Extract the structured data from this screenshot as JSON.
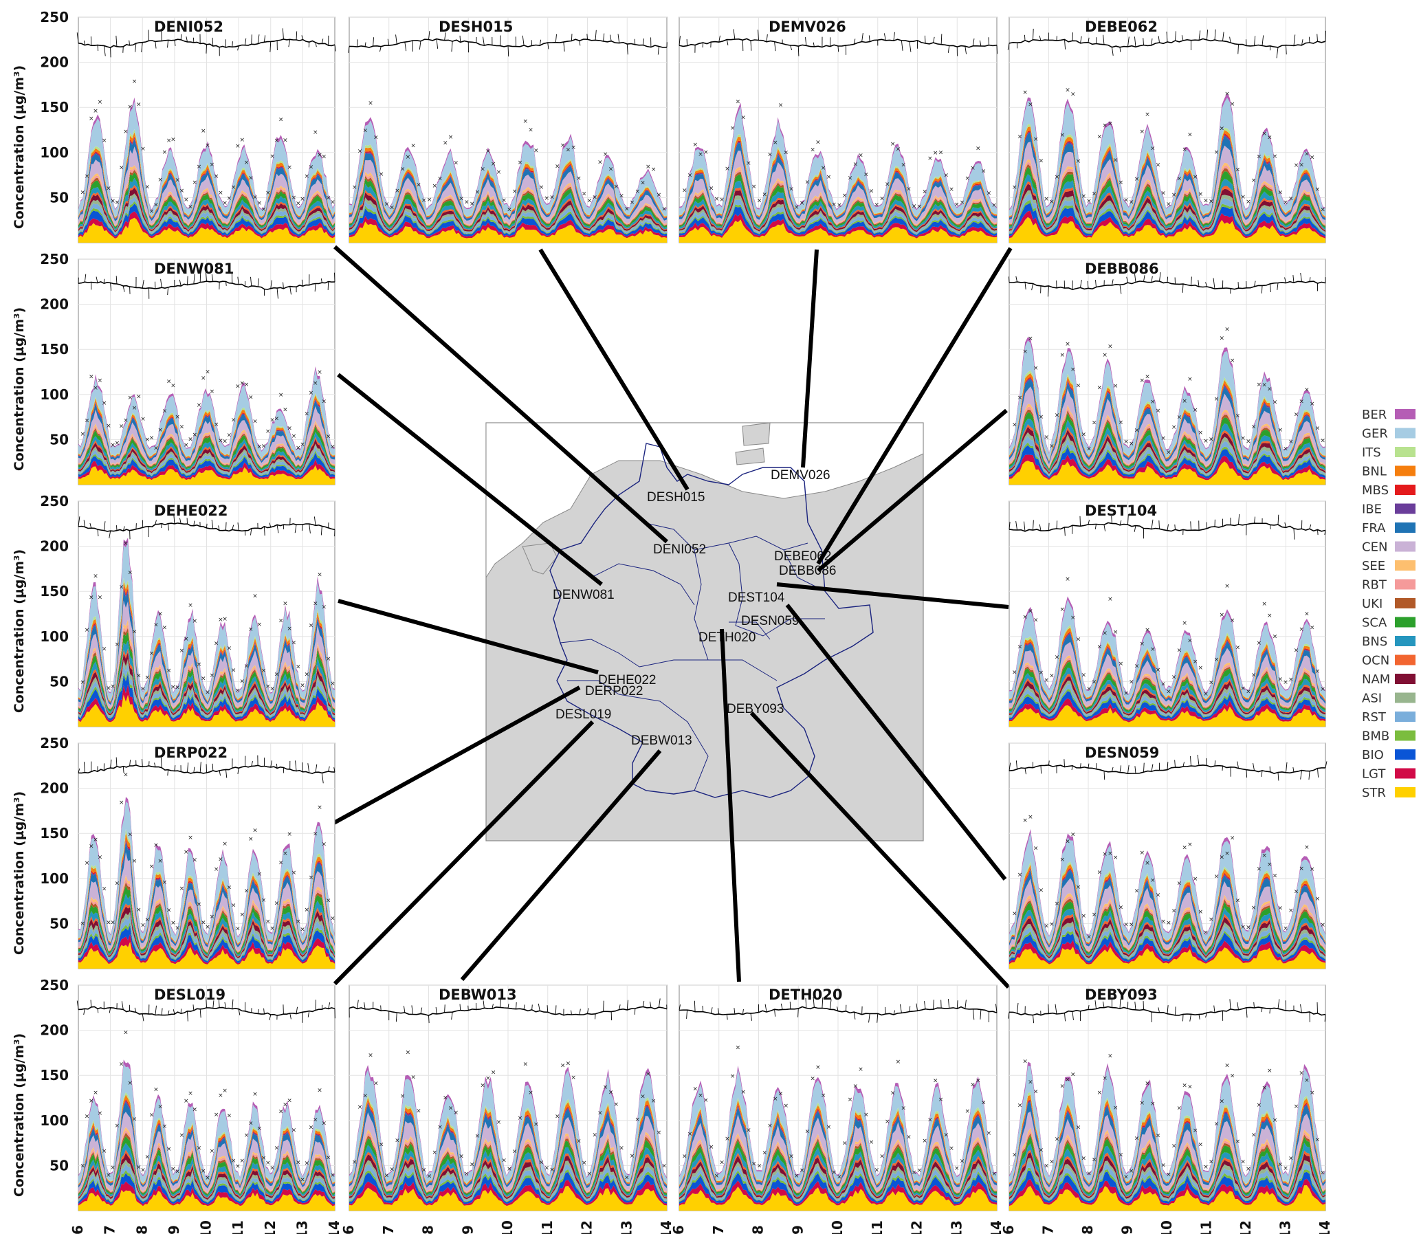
{
  "chart_data": {
    "type": "area",
    "description_axes": {
      "ylabel": "Concentration (µg/m³)",
      "ylim": [
        0,
        250
      ],
      "yticks": [
        50,
        100,
        150,
        200,
        250
      ],
      "xticks": [
        "6",
        "7",
        "8",
        "9",
        "10",
        "11",
        "12",
        "13",
        "14"
      ],
      "grid": true
    },
    "legend": {
      "placement": "right",
      "entries": [
        {
          "name": "BER",
          "color": "#b55db5"
        },
        {
          "name": "GER",
          "color": "#a6cce3"
        },
        {
          "name": "ITS",
          "color": "#b8e28f"
        },
        {
          "name": "BNL",
          "color": "#f57e0e"
        },
        {
          "name": "MBS",
          "color": "#e41a1c"
        },
        {
          "name": "IBE",
          "color": "#6a3d9a"
        },
        {
          "name": "FRA",
          "color": "#1f73b4"
        },
        {
          "name": "CEN",
          "color": "#cab2d6"
        },
        {
          "name": "SEE",
          "color": "#fdbf6f"
        },
        {
          "name": "RBT",
          "color": "#f59a9a"
        },
        {
          "name": "UKI",
          "color": "#b15928"
        },
        {
          "name": "SCA",
          "color": "#2ca02c"
        },
        {
          "name": "BNS",
          "color": "#2596be"
        },
        {
          "name": "OCN",
          "color": "#f26530"
        },
        {
          "name": "NAM",
          "color": "#800f33"
        },
        {
          "name": "ASI",
          "color": "#98b58e"
        },
        {
          "name": "RST",
          "color": "#7aaedb"
        },
        {
          "name": "BMB",
          "color": "#7bbd3e"
        },
        {
          "name": "BIO",
          "color": "#0a55d6"
        },
        {
          "name": "LGT",
          "color": "#d10a47"
        },
        {
          "name": "STR",
          "color": "#ffd000"
        }
      ]
    },
    "panels": [
      {
        "station": "DENI052",
        "peak_values": [
          135,
          145,
          95,
          105,
          100,
          115,
          100
        ],
        "markers": "x",
        "wind_arrows": true
      },
      {
        "station": "DESH015",
        "peak_values": [
          135,
          100,
          95,
          95,
          110,
          112,
          90,
          75
        ],
        "markers": "x",
        "wind_arrows": true
      },
      {
        "station": "DEMV026",
        "peak_values": [
          100,
          138,
          125,
          95,
          90,
          100,
          90,
          85
        ],
        "markers": "x",
        "wind_arrows": true
      },
      {
        "station": "DEBE062",
        "peak_values": [
          155,
          150,
          130,
          120,
          100,
          155,
          120,
          100
        ],
        "markers": "x",
        "wind_arrows": true
      },
      {
        "station": "DENW081",
        "peak_values": [
          110,
          90,
          95,
          100,
          105,
          80,
          115
        ],
        "markers": "x",
        "wind_arrows": true
      },
      {
        "station": "DEBB086",
        "peak_values": [
          150,
          145,
          125,
          110,
          100,
          145,
          115,
          100
        ],
        "markers": "x",
        "wind_arrows": true
      },
      {
        "station": "DEHE022",
        "peak_values": [
          145,
          200,
          120,
          120,
          110,
          115,
          120,
          150
        ],
        "markers": "x",
        "wind_arrows": true
      },
      {
        "station": "DEST104",
        "peak_values": [
          125,
          135,
          115,
          105,
          100,
          125,
          110,
          110
        ],
        "markers": "x",
        "wind_arrows": true
      },
      {
        "station": "DERP022",
        "peak_values": [
          140,
          180,
          130,
          125,
          120,
          130,
          135,
          155
        ],
        "markers": "x",
        "wind_arrows": true
      },
      {
        "station": "DESN059",
        "peak_values": [
          140,
          145,
          130,
          120,
          120,
          135,
          130,
          125
        ],
        "markers": "x",
        "wind_arrows": true
      },
      {
        "station": "DESL019",
        "peak_values": [
          120,
          170,
          120,
          115,
          110,
          110,
          110,
          110
        ],
        "markers": "x",
        "wind_arrows": true
      },
      {
        "station": "DEBW013",
        "peak_values": [
          150,
          145,
          125,
          140,
          140,
          145,
          140,
          150
        ],
        "markers": "x",
        "wind_arrows": true
      },
      {
        "station": "DETH020",
        "peak_values": [
          135,
          145,
          130,
          140,
          135,
          135,
          130,
          140
        ],
        "markers": "x",
        "wind_arrows": true
      },
      {
        "station": "DEBY093",
        "peak_values": [
          150,
          145,
          150,
          135,
          130,
          140,
          140,
          150
        ],
        "markers": "x",
        "wind_arrows": true
      }
    ],
    "map": {
      "labels": [
        "DEMV026",
        "DESH015",
        "DENI052",
        "DEBE062",
        "DEBB086",
        "DENW081",
        "DEST104",
        "DESN059",
        "DETH020",
        "DEHE022",
        "DERP022",
        "DESL019",
        "DEBY093",
        "DEBW013"
      ]
    }
  }
}
